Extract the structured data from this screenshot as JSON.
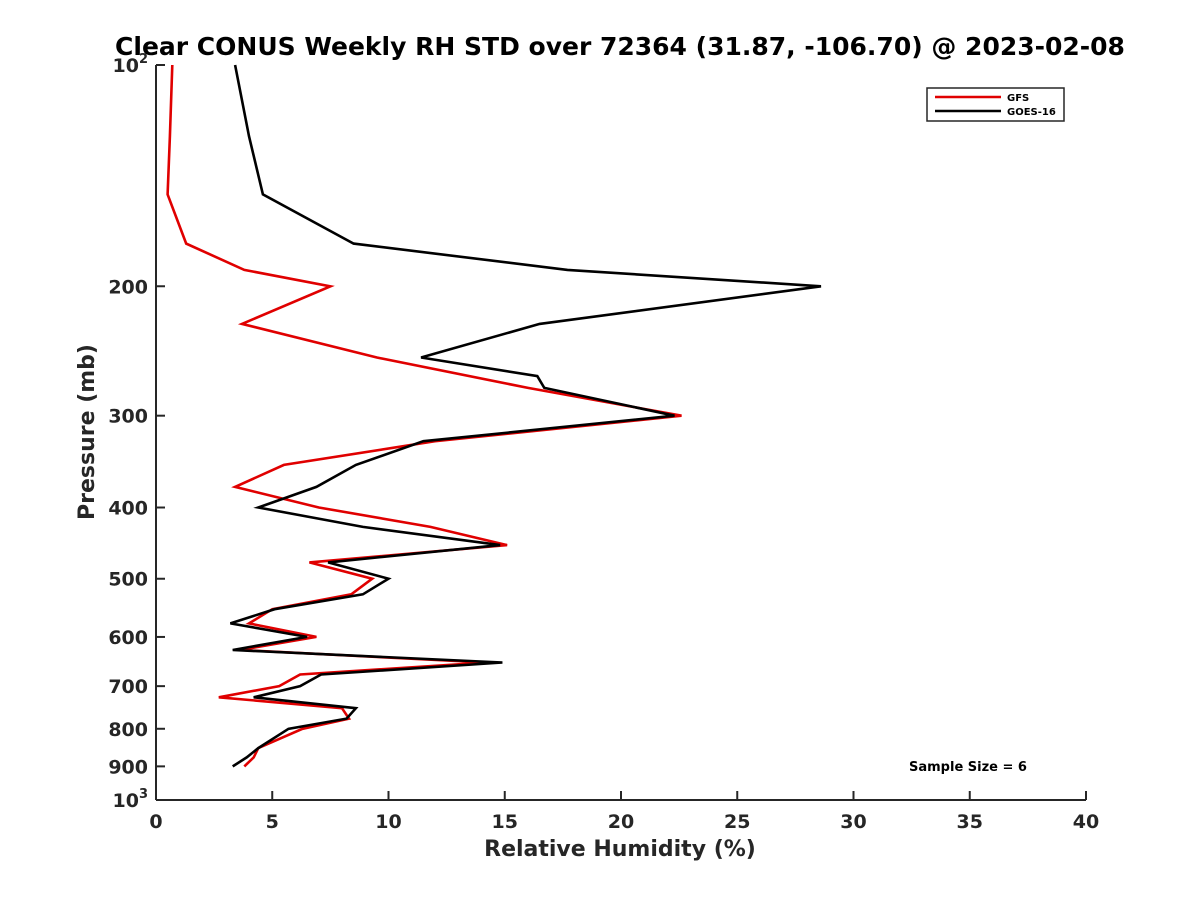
{
  "chart_data": {
    "type": "line",
    "title": "Clear CONUS Weekly RH STD over 72364 (31.87, -106.70) @ 2023-02-08",
    "xlabel": "Relative Humidity (%)",
    "ylabel": "Pressure (mb)",
    "xlim": [
      0,
      40
    ],
    "ylim": [
      100,
      1000
    ],
    "y_scale": "log",
    "y_reversed": true,
    "grid": false,
    "legend_position": "top-right",
    "x_ticks": [
      "0",
      "5",
      "10",
      "15",
      "20",
      "25",
      "30",
      "35",
      "40"
    ],
    "y_ticks": [
      {
        "value": 100,
        "base": "10",
        "exp": "2"
      },
      {
        "value": 200,
        "label": "200"
      },
      {
        "value": 300,
        "label": "300"
      },
      {
        "value": 400,
        "label": "400"
      },
      {
        "value": 500,
        "label": "500"
      },
      {
        "value": 600,
        "label": "600"
      },
      {
        "value": 700,
        "label": "700"
      },
      {
        "value": 800,
        "label": "800"
      },
      {
        "value": 900,
        "label": "900"
      },
      {
        "value": 1000,
        "base": "10",
        "exp": "3"
      }
    ],
    "annotation": "Sample Size = 6",
    "series": [
      {
        "name": "GFS",
        "color": "#e00000",
        "points": [
          [
            0.7,
            100
          ],
          [
            0.6,
            125
          ],
          [
            0.5,
            150
          ],
          [
            1.3,
            175
          ],
          [
            3.8,
            190
          ],
          [
            7.5,
            200
          ],
          [
            3.7,
            225
          ],
          [
            9.5,
            250
          ],
          [
            16,
            275
          ],
          [
            22.6,
            300
          ],
          [
            12,
            325
          ],
          [
            5.5,
            350
          ],
          [
            3.4,
            375
          ],
          [
            7,
            400
          ],
          [
            11.8,
            425
          ],
          [
            15.1,
            450
          ],
          [
            6.6,
            475
          ],
          [
            9.3,
            500
          ],
          [
            8.4,
            525
          ],
          [
            5,
            550
          ],
          [
            4,
            575
          ],
          [
            6.9,
            600
          ],
          [
            3.6,
            625
          ],
          [
            14.2,
            650
          ],
          [
            6.2,
            675
          ],
          [
            5.3,
            700
          ],
          [
            2.7,
            725
          ],
          [
            8,
            750
          ],
          [
            8.3,
            775
          ],
          [
            6.3,
            800
          ],
          [
            4.4,
            850
          ],
          [
            4.2,
            875
          ],
          [
            3.8,
            900
          ]
        ]
      },
      {
        "name": "GOES-16",
        "color": "#000000",
        "points": [
          [
            3.4,
            100
          ],
          [
            4,
            125
          ],
          [
            4.6,
            150
          ],
          [
            8.5,
            175
          ],
          [
            17.7,
            190
          ],
          [
            28.6,
            200
          ],
          [
            16.5,
            225
          ],
          [
            11.4,
            250
          ],
          [
            16.4,
            265
          ],
          [
            16.7,
            275
          ],
          [
            22.3,
            300
          ],
          [
            11.5,
            325
          ],
          [
            8.6,
            350
          ],
          [
            6.9,
            375
          ],
          [
            4.4,
            400
          ],
          [
            8.9,
            425
          ],
          [
            14.8,
            450
          ],
          [
            7.4,
            475
          ],
          [
            10,
            500
          ],
          [
            8.9,
            525
          ],
          [
            5.1,
            550
          ],
          [
            3.2,
            575
          ],
          [
            6.5,
            600
          ],
          [
            3.3,
            625
          ],
          [
            14.9,
            650
          ],
          [
            7.1,
            675
          ],
          [
            6.2,
            700
          ],
          [
            4.2,
            725
          ],
          [
            8.6,
            750
          ],
          [
            8.2,
            775
          ],
          [
            5.7,
            800
          ],
          [
            4.4,
            850
          ],
          [
            3.9,
            875
          ],
          [
            3.3,
            900
          ]
        ]
      }
    ]
  }
}
